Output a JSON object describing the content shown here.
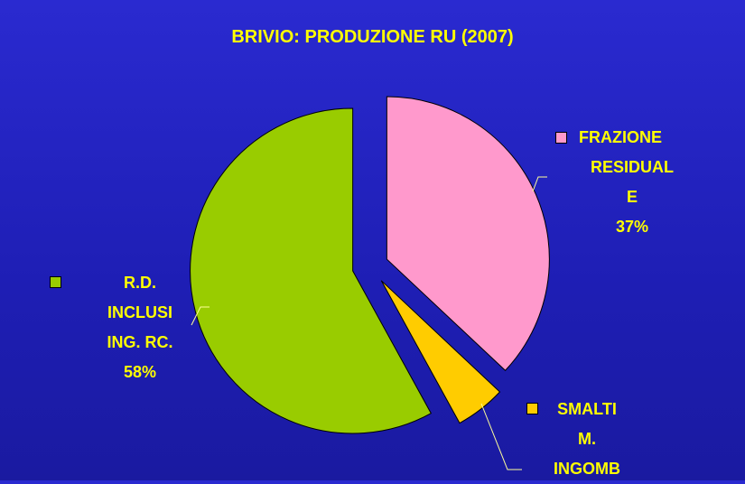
{
  "chart_data": {
    "type": "pie",
    "title": "BRIVIO: PRODUZIONE RU (2007)",
    "categories": [
      "FRAZIONE RESIDUALE",
      "SMALTIM. INGOMB",
      "R.D. INCLUSI ING. RC."
    ],
    "values": [
      37,
      5,
      58
    ],
    "value_labels": [
      "37%",
      null,
      "58%"
    ],
    "colors": [
      "#ff99cc",
      "#ffcc00",
      "#99cc00"
    ]
  }
}
